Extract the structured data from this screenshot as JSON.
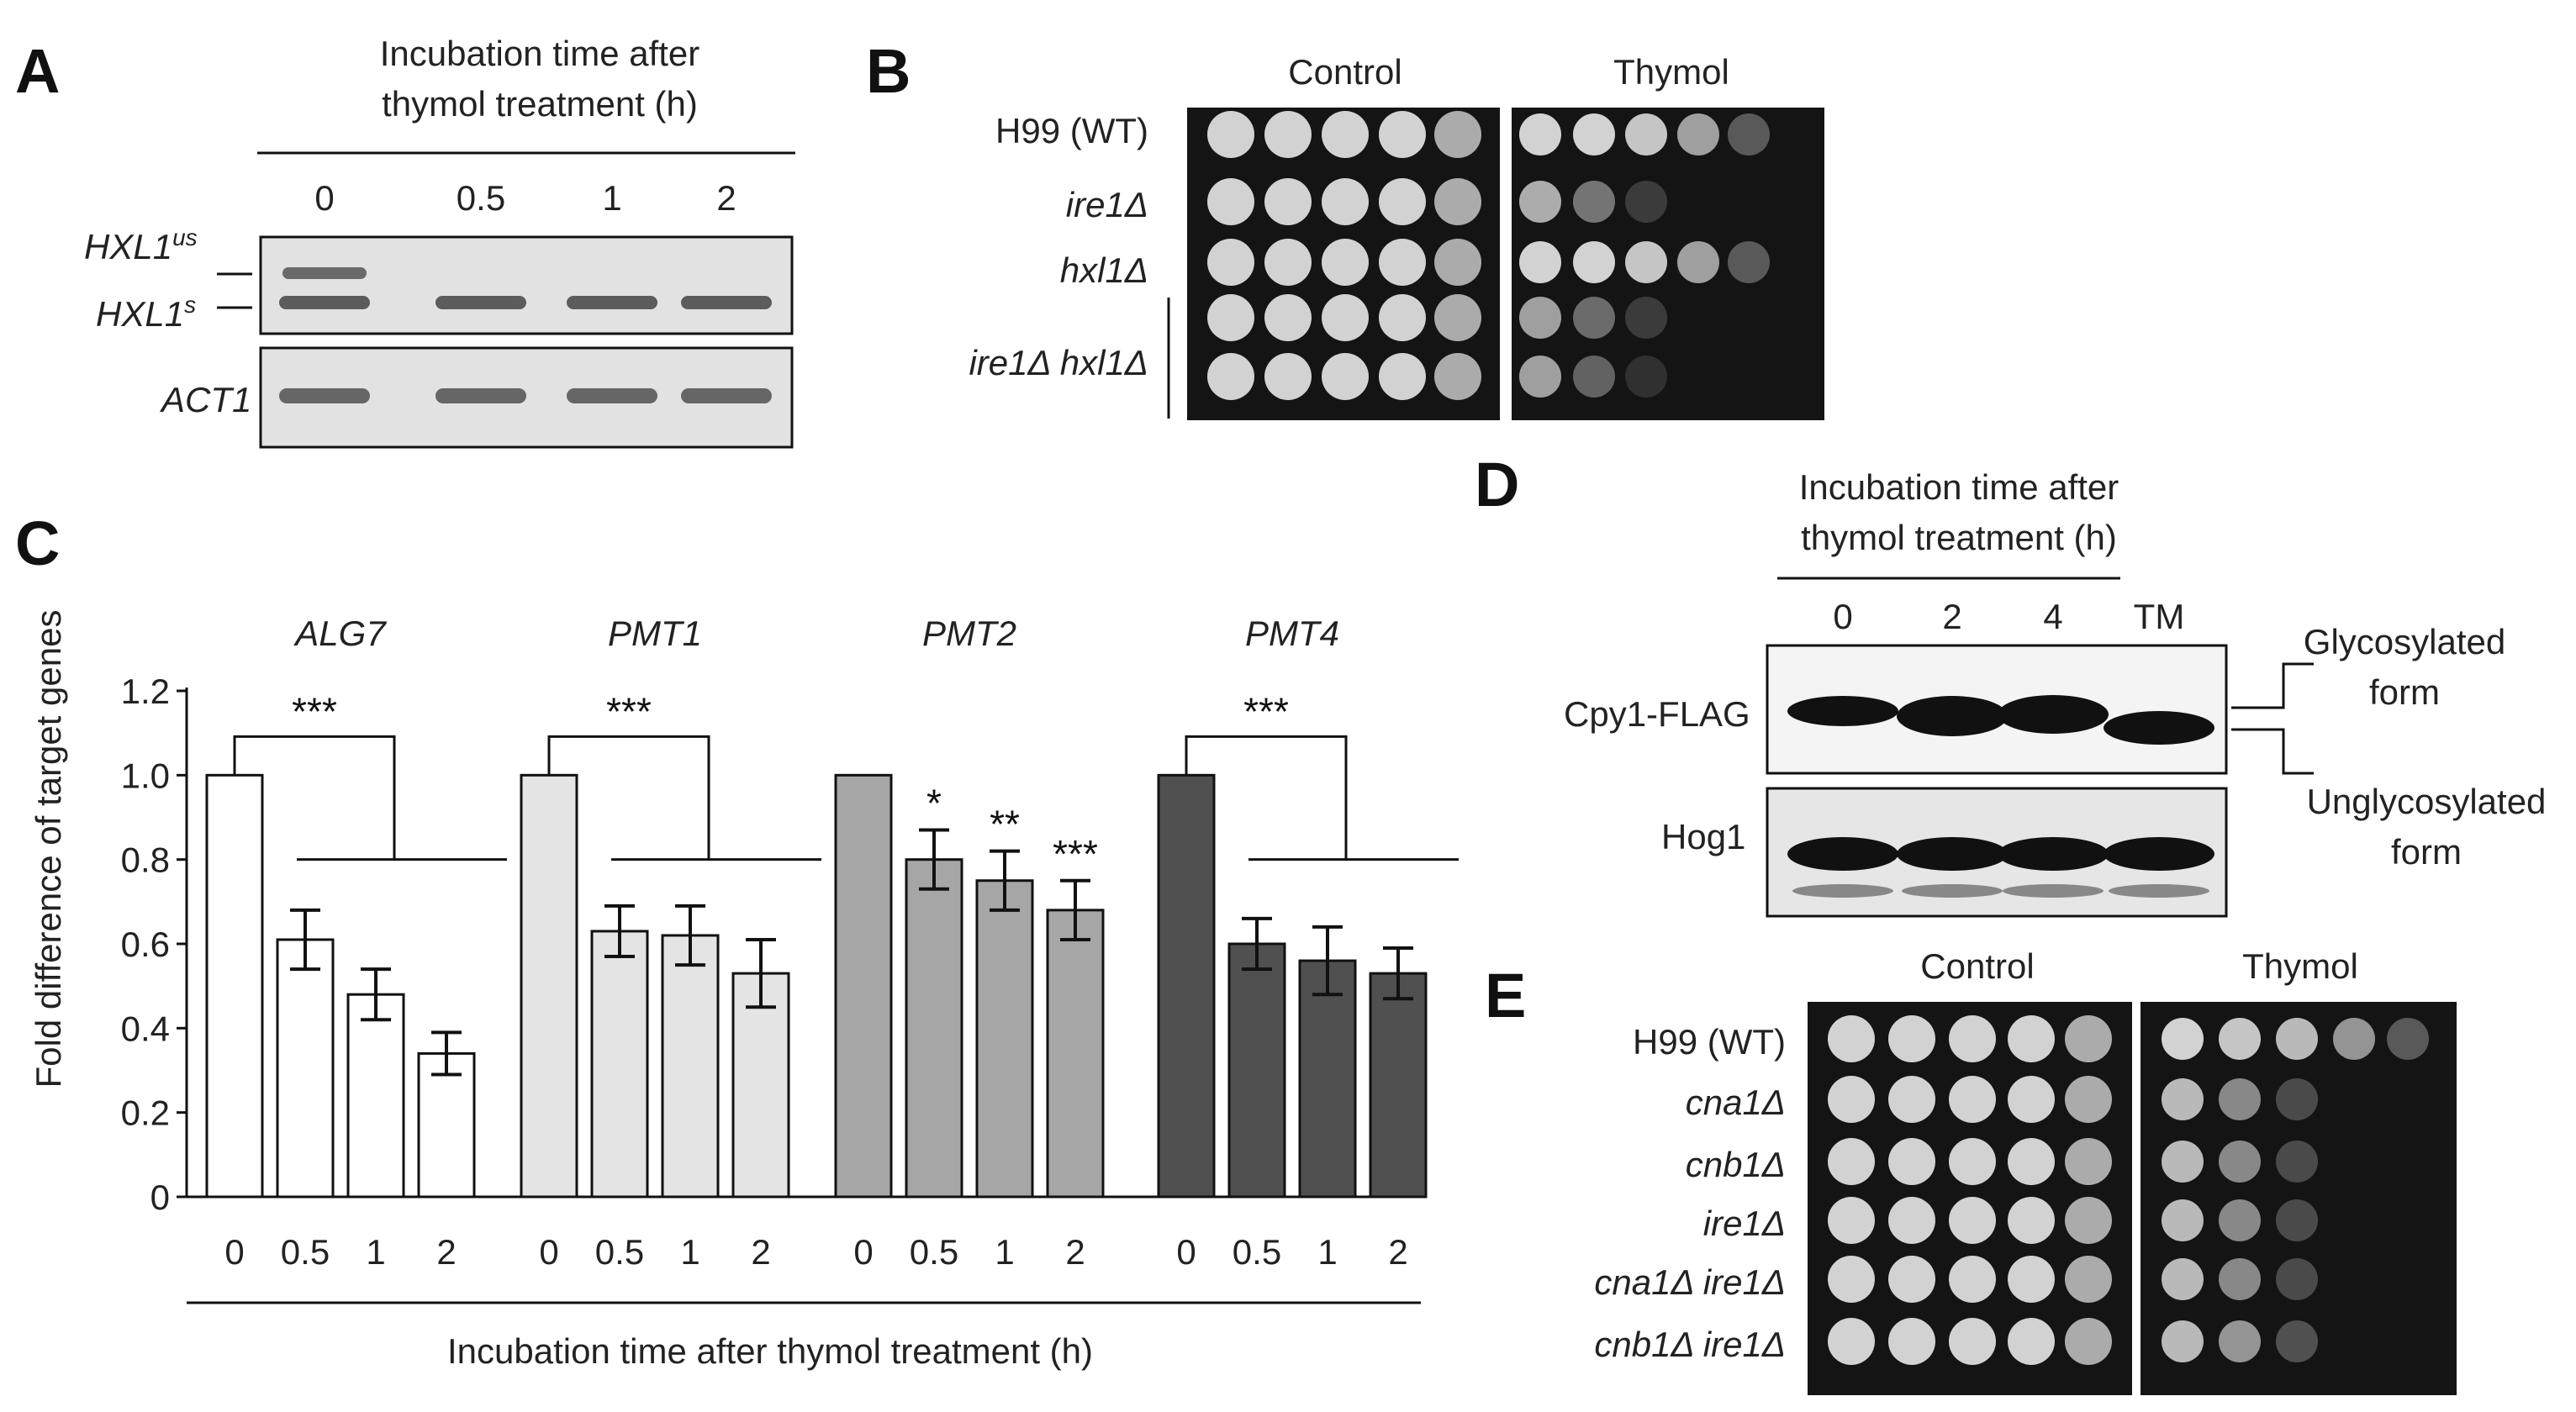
{
  "panels": {
    "a": "A",
    "b": "B",
    "c": "C",
    "d": "D",
    "e": "E"
  },
  "panel_a": {
    "header_line1": "Incubation time after",
    "header_line2": "thymol treatment (h)",
    "lanes": [
      "0",
      "0.5",
      "1",
      "2"
    ],
    "label_us": "HXL1",
    "label_us_sup": "us",
    "label_s": "HXL1",
    "label_s_sup": "s",
    "label_act": "ACT1"
  },
  "panel_b": {
    "conditions": [
      "Control",
      "Thymol"
    ],
    "strains": [
      {
        "name": "H99 (WT)",
        "italic": false
      },
      {
        "name": "ire1Δ",
        "italic": true
      },
      {
        "name": "hxl1Δ",
        "italic": true
      },
      {
        "name": "",
        "italic": true
      },
      {
        "name": "ire1Δ hxl1Δ",
        "italic": true
      }
    ],
    "thymol_growth": [
      [
        1,
        1,
        0.95,
        0.8,
        0.45
      ],
      [
        0.85,
        0.6,
        0.25,
        0,
        0
      ],
      [
        1,
        1,
        0.95,
        0.8,
        0.45
      ],
      [
        0.8,
        0.55,
        0.25,
        0,
        0
      ],
      [
        0.8,
        0.5,
        0.15,
        0,
        0
      ]
    ]
  },
  "panel_d": {
    "header_line1": "Incubation time after",
    "header_line2": "thymol treatment (h)",
    "lanes": [
      "0",
      "2",
      "4",
      "TM"
    ],
    "row1": "Cpy1-FLAG",
    "row2": "Hog1",
    "glyco_line1": "Glycosylated",
    "glyco_line2": "form",
    "unglyco_line1": "Unglycosylated",
    "unglyco_line2": "form"
  },
  "panel_e": {
    "conditions": [
      "Control",
      "Thymol"
    ],
    "strains": [
      "H99 (WT)",
      "cna1Δ",
      "cnb1Δ",
      "ire1Δ",
      "cna1Δ ire1Δ",
      "cnb1Δ ire1Δ"
    ],
    "thymol_growth": [
      [
        1,
        0.95,
        0.9,
        0.75,
        0.45
      ],
      [
        0.9,
        0.7,
        0.35,
        0,
        0
      ],
      [
        0.9,
        0.7,
        0.35,
        0,
        0
      ],
      [
        0.9,
        0.7,
        0.35,
        0,
        0
      ],
      [
        0.9,
        0.7,
        0.35,
        0,
        0
      ],
      [
        0.9,
        0.75,
        0.4,
        0,
        0
      ]
    ]
  },
  "chart_data": {
    "type": "bar",
    "title": "",
    "xlabel": "Incubation time after thymol treatment (h)",
    "ylabel": "Fold difference of target genes",
    "ylim": [
      0,
      1.2
    ],
    "yticks": [
      "0",
      "0.2",
      "0.4",
      "0.6",
      "0.8",
      "1.0",
      "1.2"
    ],
    "categories": [
      "0",
      "0.5",
      "1",
      "2"
    ],
    "groups": [
      {
        "name": "ALG7",
        "color": "#ffffff",
        "values": [
          1.0,
          0.61,
          0.48,
          0.34
        ],
        "errors": [
          0,
          0.07,
          0.06,
          0.05
        ],
        "stars": [],
        "bracket": "***"
      },
      {
        "name": "PMT1",
        "color": "#e4e4e4",
        "values": [
          1.0,
          0.63,
          0.62,
          0.53
        ],
        "errors": [
          0,
          0.06,
          0.07,
          0.08
        ],
        "stars": [],
        "bracket": "***"
      },
      {
        "name": "PMT2",
        "color": "#a6a6a6",
        "values": [
          1.0,
          0.8,
          0.75,
          0.68
        ],
        "errors": [
          0,
          0.07,
          0.07,
          0.07
        ],
        "stars": [
          "",
          "*",
          "**",
          "***"
        ],
        "bracket": ""
      },
      {
        "name": "PMT4",
        "color": "#505050",
        "values": [
          1.0,
          0.6,
          0.56,
          0.53
        ],
        "errors": [
          0,
          0.06,
          0.08,
          0.06
        ],
        "stars": [],
        "bracket": "***"
      }
    ]
  }
}
